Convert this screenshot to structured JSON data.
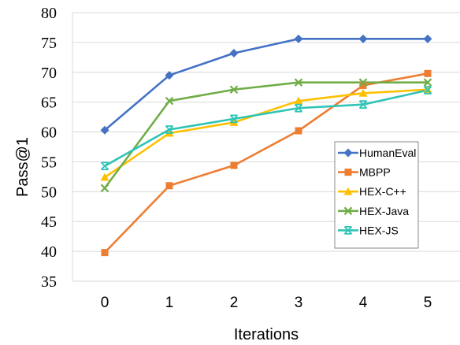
{
  "chart_data": {
    "type": "line",
    "title": "",
    "xlabel": "Iterations",
    "ylabel": "Pass@1",
    "x": [
      0,
      1,
      2,
      3,
      4,
      5
    ],
    "xticks": [
      "0",
      "1",
      "2",
      "3",
      "4",
      "5"
    ],
    "ylim": [
      35,
      80
    ],
    "yticks": [
      "35",
      "40",
      "45",
      "50",
      "55",
      "60",
      "65",
      "70",
      "75",
      "80"
    ],
    "grid": "horizontal",
    "legend_position": "right",
    "series": [
      {
        "name": "HumanEval",
        "color": "#4472C4",
        "marker": "diamond",
        "values": [
          60.3,
          69.5,
          73.2,
          75.6,
          75.6,
          75.6
        ]
      },
      {
        "name": "MBPP",
        "color": "#ED7D31",
        "marker": "square",
        "values": [
          39.8,
          51.0,
          54.4,
          60.2,
          67.8,
          69.8
        ]
      },
      {
        "name": "HEX-C++",
        "color": "#FFC000",
        "marker": "triangle",
        "values": [
          52.4,
          59.8,
          61.6,
          65.2,
          66.5,
          67.1
        ]
      },
      {
        "name": "HEX-Java",
        "color": "#70AD47",
        "marker": "x",
        "values": [
          50.6,
          65.2,
          67.1,
          68.3,
          68.3,
          68.3
        ]
      },
      {
        "name": "HEX-JS",
        "color": "#2EC4B6",
        "marker": "x-bar",
        "values": [
          54.3,
          60.4,
          62.2,
          64.0,
          64.6,
          67.0
        ]
      }
    ]
  }
}
